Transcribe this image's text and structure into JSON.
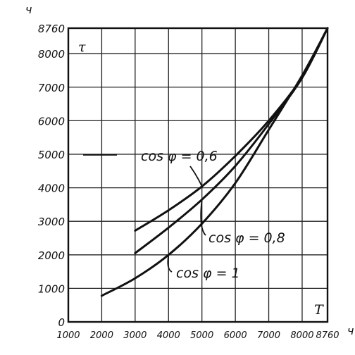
{
  "chart_data": {
    "type": "line",
    "xlabel": "T",
    "ylabel": "τ",
    "x_unit": "ч",
    "y_unit": "ч",
    "xlim": [
      1000,
      8760
    ],
    "ylim": [
      0,
      8760
    ],
    "x_ticks": [
      {
        "v": 1000,
        "label": "1000"
      },
      {
        "v": 2000,
        "label": "2000"
      },
      {
        "v": 3000,
        "label": "3000"
      },
      {
        "v": 4000,
        "label": "4000"
      },
      {
        "v": 5000,
        "label": "5000"
      },
      {
        "v": 6000,
        "label": "6000"
      },
      {
        "v": 7000,
        "label": "7000"
      },
      {
        "v": 8000,
        "label": "8000"
      },
      {
        "v": 8760,
        "label": "8760"
      }
    ],
    "y_ticks": [
      {
        "v": 0,
        "label": "0"
      },
      {
        "v": 1000,
        "label": "1000"
      },
      {
        "v": 2000,
        "label": "2000"
      },
      {
        "v": 3000,
        "label": "3000"
      },
      {
        "v": 4000,
        "label": "4000"
      },
      {
        "v": 5000,
        "label": "5000"
      },
      {
        "v": 6000,
        "label": "6000"
      },
      {
        "v": 7000,
        "label": "7000"
      },
      {
        "v": 8000,
        "label": "8000"
      },
      {
        "v": 8760,
        "label": "8760"
      }
    ],
    "grid": true,
    "series": [
      {
        "name": "cos φ = 0,6",
        "x": [
          3000,
          4000,
          5000,
          6000,
          7000,
          8000,
          8760
        ],
        "y": [
          2720,
          3330,
          4040,
          4950,
          6000,
          7300,
          8760
        ]
      },
      {
        "name": "cos φ = 0,8",
        "x": [
          3000,
          4000,
          5000,
          6000,
          7000,
          8000,
          8760
        ],
        "y": [
          2050,
          2810,
          3650,
          4650,
          5900,
          7280,
          8760
        ]
      },
      {
        "name": "cos φ = 1",
        "x": [
          2000,
          3000,
          4000,
          5000,
          6000,
          7000,
          8000,
          8760
        ],
        "y": [
          780,
          1300,
          2000,
          2930,
          4140,
          5730,
          7350,
          8760
        ]
      }
    ],
    "annotations": [
      {
        "text": "cos φ = 0,6",
        "series": 0,
        "at_x": 5000
      },
      {
        "text": "cos φ = 0,8",
        "series": 1,
        "at_x": 5000
      },
      {
        "text": "cos φ = 1",
        "series": 2,
        "at_x": 4000
      }
    ]
  }
}
